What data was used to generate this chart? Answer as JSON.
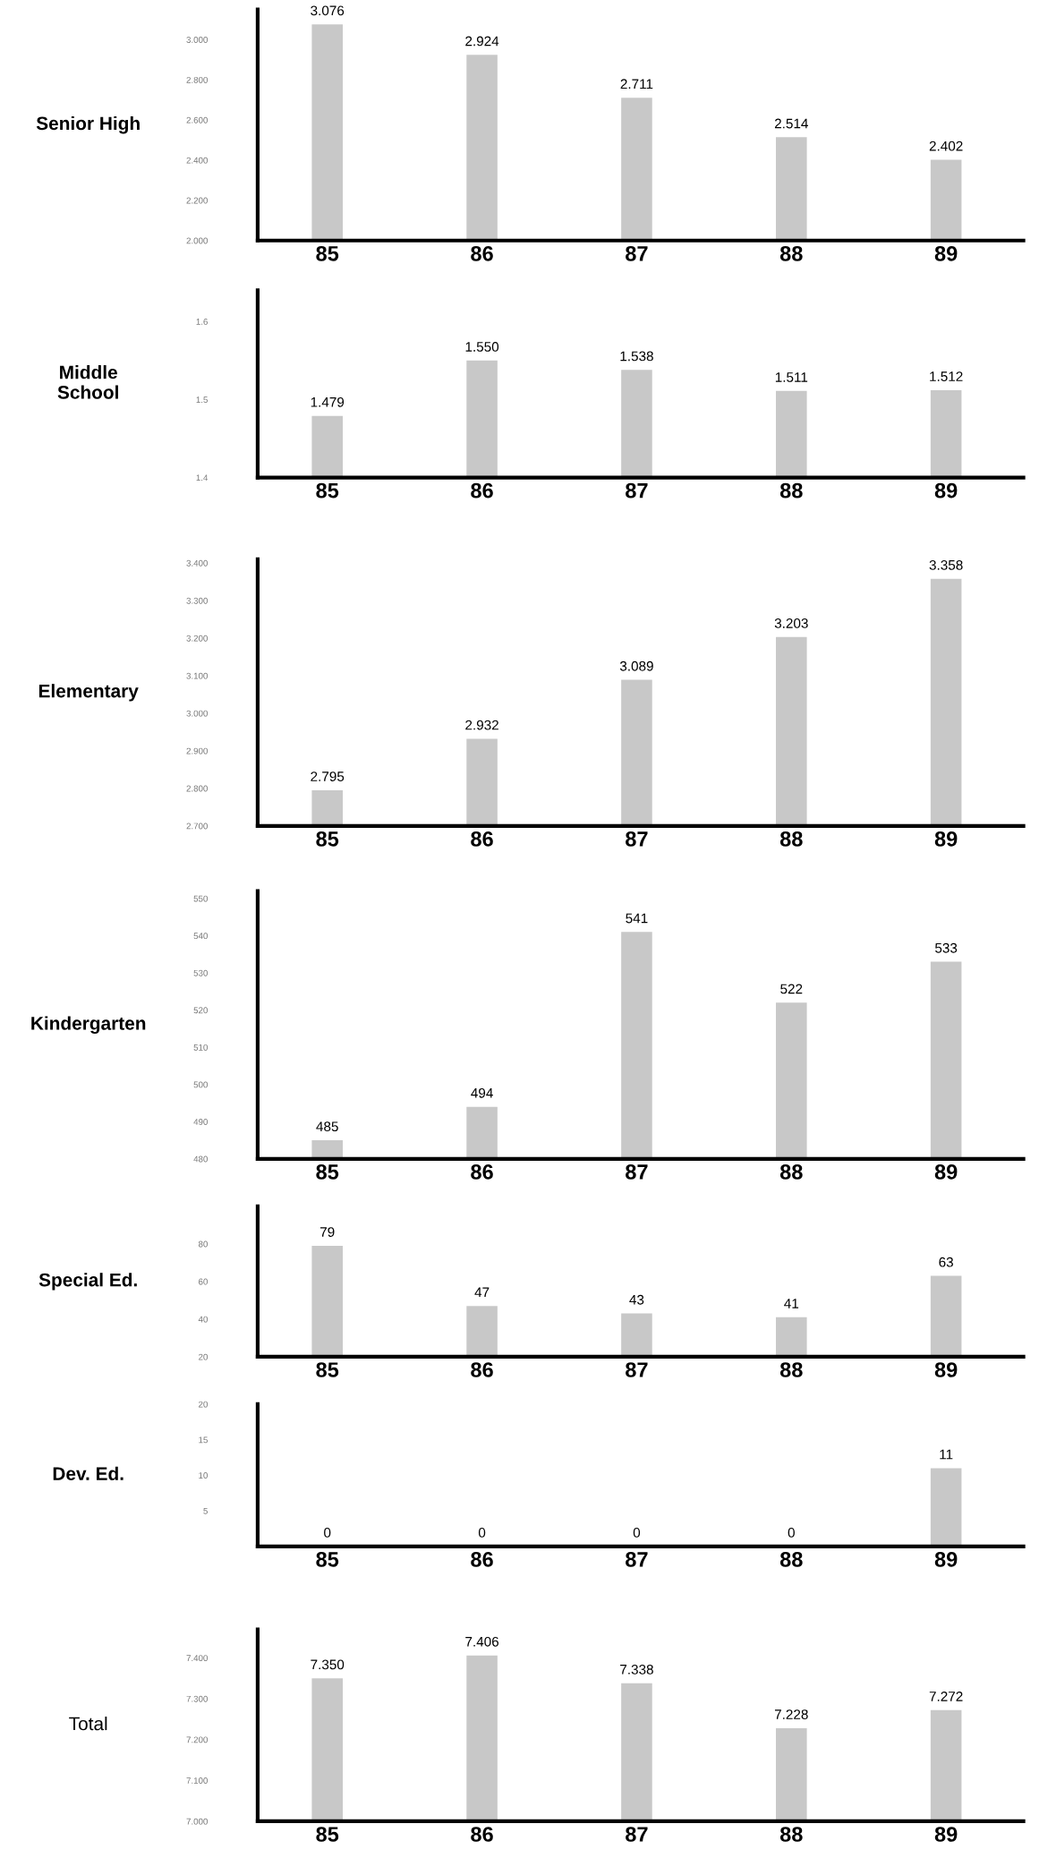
{
  "chart_data": [
    {
      "type": "bar",
      "title": "Senior High",
      "categories": [
        "85",
        "86",
        "87",
        "88",
        "89"
      ],
      "values": [
        3.076,
        2.924,
        2.711,
        2.514,
        2.402
      ],
      "value_labels": [
        "3.076",
        "2.924",
        "2.711",
        "2.514",
        "2.402"
      ],
      "color": "#c8c8c8",
      "ylim": [
        2.0,
        3.15
      ],
      "yticks": [
        {
          "value": 2.0,
          "label": "2.000"
        },
        {
          "value": 2.2,
          "label": "2.200"
        },
        {
          "value": 2.4,
          "label": "2.400"
        },
        {
          "value": 2.6,
          "label": "2.600"
        },
        {
          "value": 2.8,
          "label": "2.800"
        },
        {
          "value": 3.0,
          "label": "3.000"
        }
      ]
    },
    {
      "type": "bar",
      "title": "Middle\nSchool",
      "categories": [
        "85",
        "86",
        "87",
        "88",
        "89"
      ],
      "values": [
        1.479,
        1.55,
        1.538,
        1.511,
        1.512
      ],
      "value_labels": [
        "1.479",
        "1.550",
        "1.538",
        "1.511",
        "1.512"
      ],
      "color": "#c8c8c8",
      "ylim": [
        1.4,
        1.64
      ],
      "yticks": [
        1.4,
        1.5,
        1.6
      ]
    },
    {
      "type": "bar",
      "title": "Elementary",
      "categories": [
        "85",
        "86",
        "87",
        "88",
        "89"
      ],
      "values": [
        2.795,
        2.932,
        3.089,
        3.203,
        3.358
      ],
      "value_labels": [
        "2.795",
        "2.932",
        "3.089",
        "3.203",
        "3.358"
      ],
      "color": "#c8c8c8",
      "ylim": [
        2.7,
        3.41
      ],
      "yticks": [
        {
          "value": 2.7,
          "label": "2.700"
        },
        {
          "value": 2.8,
          "label": "2.800"
        },
        {
          "value": 2.9,
          "label": "2.900"
        },
        {
          "value": 3.0,
          "label": "3.000"
        },
        {
          "value": 3.1,
          "label": "3.100"
        },
        {
          "value": 3.2,
          "label": "3.200"
        },
        {
          "value": 3.3,
          "label": "3.300"
        },
        {
          "value": 3.4,
          "label": "3.400"
        }
      ]
    },
    {
      "type": "bar",
      "title": "Kindergarten",
      "categories": [
        "85",
        "86",
        "87",
        "88",
        "89"
      ],
      "values": [
        485,
        494,
        541,
        522,
        533
      ],
      "data_labels": true,
      "color": "#c8c8c8",
      "ylim": [
        480,
        552
      ],
      "yticks": [
        480,
        490,
        500,
        510,
        520,
        530,
        540,
        550
      ]
    },
    {
      "type": "bar",
      "title": "Special Ed.",
      "categories": [
        "85",
        "86",
        "87",
        "88",
        "89"
      ],
      "values": [
        79,
        47,
        43,
        41,
        63
      ],
      "data_labels": true,
      "color": "#c8c8c8",
      "ylim": [
        20,
        100
      ],
      "yticks": [
        20,
        40,
        60,
        80
      ]
    },
    {
      "type": "bar",
      "title": "Dev. Ed.",
      "categories": [
        "85",
        "86",
        "87",
        "88",
        "89"
      ],
      "values": [
        0,
        0,
        0,
        0,
        11
      ],
      "data_labels": true,
      "color": "#c8c8c8",
      "ylim": [
        0,
        20
      ],
      "yticks": [
        {
          "value": 0,
          "label": null
        },
        5,
        10,
        15,
        20
      ]
    },
    {
      "type": "bar",
      "title": "Total",
      "categories": [
        "85",
        "86",
        "87",
        "88",
        "89"
      ],
      "values": [
        7.35,
        7.406,
        7.338,
        7.228,
        7.272
      ],
      "value_labels": [
        "7.350",
        "7.406",
        "7.338",
        "7.228",
        "7.272"
      ],
      "color": "#c8c8c8",
      "ylim": [
        7.0,
        7.47
      ],
      "yticks": [
        {
          "value": 7.0,
          "label": "7.000"
        },
        {
          "value": 7.1,
          "label": "7.100"
        },
        {
          "value": 7.2,
          "label": "7.200"
        },
        {
          "value": 7.3,
          "label": "7.300"
        },
        {
          "value": 7.4,
          "label": "7.400"
        }
      ]
    }
  ]
}
